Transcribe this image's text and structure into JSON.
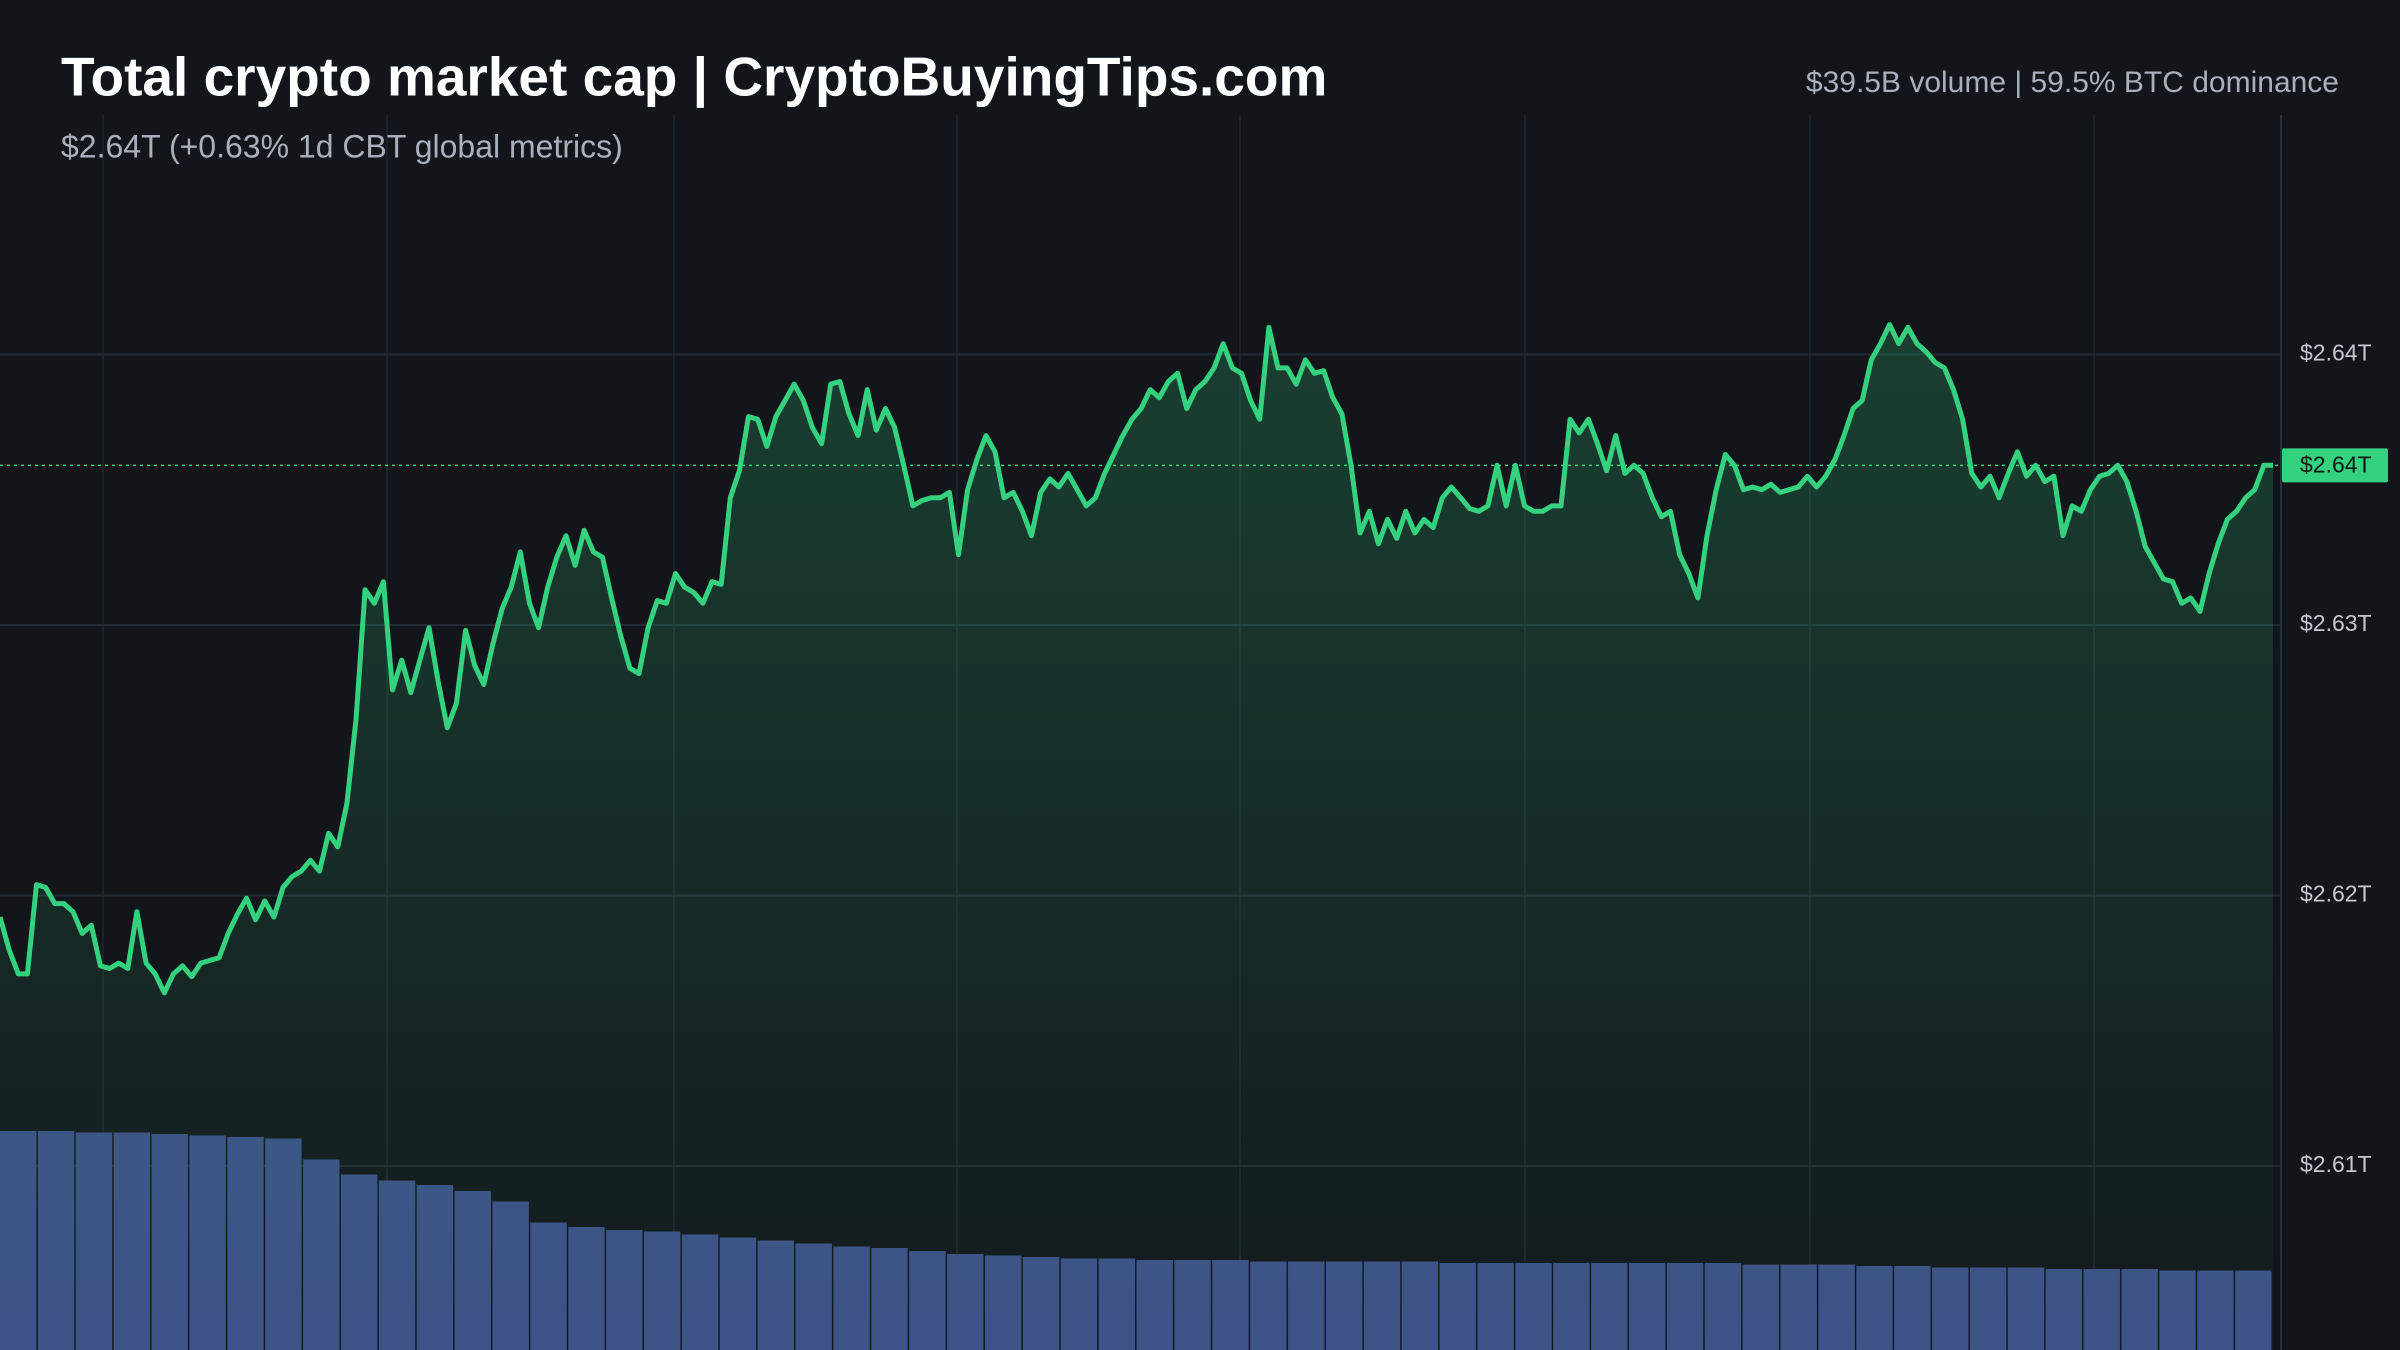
{
  "chart_data": {
    "type": "line",
    "title": "Total crypto market cap | CryptoBuyingTips.com",
    "subtitle": "$2.64T (+0.63% 1d CBT global metrics)",
    "stats": "$39.5B volume | 59.5% BTC dominance",
    "color": "#34d17f",
    "values": [
      2.6192,
      2.618,
      2.6171,
      2.6171,
      2.6204,
      2.6203,
      2.6197,
      2.6197,
      2.6194,
      2.6186,
      2.6189,
      2.6174,
      2.6173,
      2.6175,
      2.6173,
      2.6194,
      2.6175,
      2.6171,
      2.6164,
      2.6171,
      2.6174,
      2.617,
      2.6175,
      2.6176,
      2.6177,
      2.6186,
      2.6193,
      2.6199,
      2.6191,
      2.6198,
      2.6192,
      2.6203,
      2.6207,
      2.6209,
      2.6213,
      2.6209,
      2.6223,
      2.6218,
      2.6234,
      2.6265,
      2.6313,
      2.6308,
      2.6316,
      2.6276,
      2.6287,
      2.6275,
      2.6287,
      2.6299,
      2.6279,
      2.6262,
      2.6271,
      2.6298,
      2.6285,
      2.6278,
      2.6293,
      2.6306,
      2.6314,
      2.6327,
      2.6308,
      2.6299,
      2.6314,
      2.6325,
      2.6333,
      2.6322,
      2.6335,
      2.6327,
      2.6325,
      2.631,
      2.6296,
      2.6284,
      2.6282,
      2.6299,
      2.6309,
      2.6308,
      2.6319,
      2.6314,
      2.6312,
      2.6308,
      2.6316,
      2.6315,
      2.6347,
      2.6357,
      2.6377,
      2.6376,
      2.6366,
      2.6377,
      2.6383,
      2.6389,
      2.6383,
      2.6373,
      2.6367,
      2.6389,
      2.639,
      2.6378,
      2.637,
      2.6387,
      2.6372,
      2.638,
      2.6373,
      2.6359,
      2.6344,
      2.6346,
      2.6347,
      2.6347,
      2.6349,
      2.6326,
      2.635,
      2.6361,
      2.637,
      2.6364,
      2.6347,
      2.6349,
      2.6342,
      2.6333,
      2.6349,
      2.6354,
      2.6351,
      2.6356,
      2.635,
      2.6344,
      2.6347,
      2.6356,
      2.6363,
      2.637,
      2.6376,
      2.638,
      2.6387,
      2.6384,
      2.639,
      2.6393,
      2.638,
      2.6387,
      2.639,
      2.6395,
      2.6404,
      2.6395,
      2.6393,
      2.6383,
      2.6376,
      2.641,
      2.6395,
      2.6395,
      2.6389,
      2.6398,
      2.6393,
      2.6394,
      2.6384,
      2.6378,
      2.6359,
      2.6334,
      2.6342,
      2.633,
      2.6339,
      2.6332,
      2.6342,
      2.6334,
      2.6339,
      2.6336,
      2.6347,
      2.6351,
      2.6347,
      2.6343,
      2.6342,
      2.6344,
      2.6359,
      2.6344,
      2.6359,
      2.6344,
      2.6342,
      2.6342,
      2.6344,
      2.6344,
      2.6376,
      2.6371,
      2.6376,
      2.6367,
      2.6357,
      2.637,
      2.6356,
      2.6359,
      2.6356,
      2.6347,
      2.634,
      2.6342,
      2.6326,
      2.6319,
      2.631,
      2.6333,
      2.635,
      2.6363,
      2.6359,
      2.635,
      2.6351,
      2.635,
      2.6352,
      2.6349,
      2.635,
      2.6351,
      2.6355,
      2.6351,
      2.6355,
      2.6361,
      2.637,
      2.638,
      2.6383,
      2.6398,
      2.6404,
      2.6411,
      2.6404,
      2.641,
      2.6404,
      2.6401,
      2.6397,
      2.6395,
      2.6387,
      2.6376,
      2.6356,
      2.6351,
      2.6355,
      2.6347,
      2.6356,
      2.6364,
      2.6355,
      2.6359,
      2.6353,
      2.6355,
      2.6333,
      2.6344,
      2.6342,
      2.635,
      2.6355,
      2.6356,
      2.6359,
      2.6353,
      2.6342,
      2.6329,
      2.6323,
      2.6317,
      2.6316,
      2.6308,
      2.631,
      2.6305,
      2.6319,
      2.633,
      2.6339,
      2.6342,
      2.6347,
      2.635,
      2.6359,
      2.6359
    ],
    "last_price_label": "$2.64T",
    "ylim": [
      2.6032,
      2.6531
    ],
    "yticks": [
      {
        "value": 2.61,
        "label": "$2.61T"
      },
      {
        "value": 2.62,
        "label": "$2.62T"
      },
      {
        "value": 2.63,
        "label": "$2.63T"
      },
      {
        "value": 2.64,
        "label": "$2.64T"
      }
    ],
    "grid": true,
    "volume_color": "#3d4f86",
    "volume_values": [
      146,
      146,
      145,
      145,
      144,
      143,
      142,
      141,
      127,
      117,
      113,
      110,
      106,
      99,
      85,
      82,
      80,
      79,
      77,
      75,
      73,
      71,
      69,
      68,
      66,
      64,
      63,
      62,
      61,
      61,
      60,
      60,
      60,
      59,
      59,
      59,
      59,
      59,
      58,
      58,
      58,
      58,
      58,
      58,
      58,
      58,
      57,
      57,
      57,
      56,
      56,
      55,
      55,
      55,
      54,
      54,
      54,
      53,
      53,
      53
    ],
    "y2lim": [
      0,
      900
    ]
  }
}
